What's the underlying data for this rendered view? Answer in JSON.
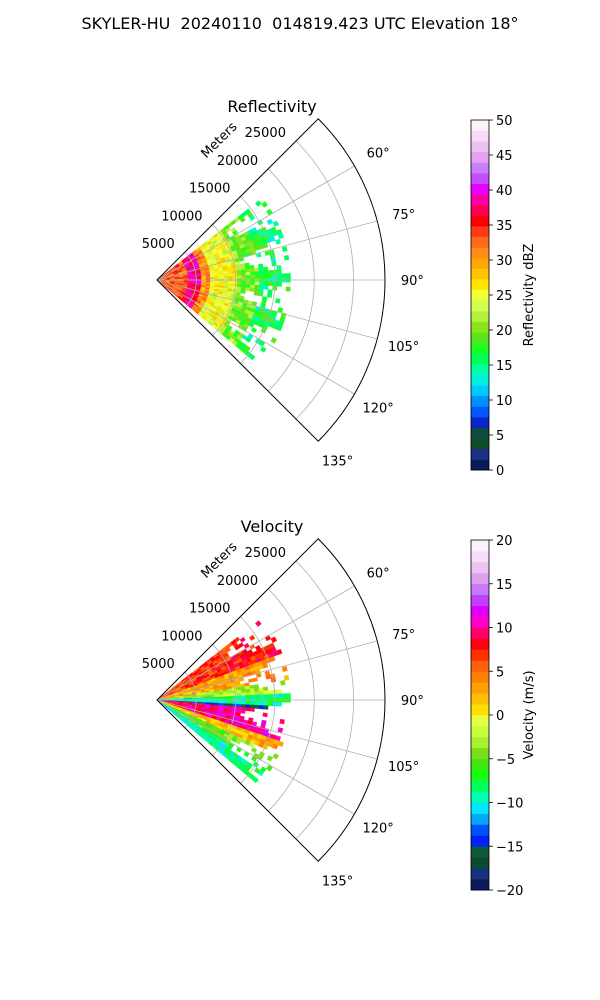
{
  "suptitle": "SKYLER-HU  20240110  014819.423 UTC Elevation 18°",
  "chart_data": [
    {
      "type": "heatmap",
      "title": "Reflectivity",
      "projection": "polar-sector",
      "theta_range_deg": [
        45,
        135
      ],
      "radial_label": "Meters",
      "radial_ticks": [
        5000,
        10000,
        15000,
        20000,
        25000
      ],
      "radial_tick_labels": [
        "5000",
        "10000",
        "15000",
        "20000",
        "25000"
      ],
      "radial_lim": [
        0,
        29000
      ],
      "angle_ticks_deg": [
        60,
        75,
        90,
        105,
        120,
        135
      ],
      "angle_tick_labels": [
        "60°",
        "75°",
        "90°",
        "105°",
        "120°",
        "135°"
      ],
      "grid": true,
      "colorbar": {
        "label": "Reflectivity dBZ",
        "range": [
          0,
          50
        ],
        "ticks": [
          0,
          5,
          10,
          15,
          20,
          25,
          30,
          35,
          40,
          45,
          50
        ],
        "tick_labels": [
          "0",
          "5",
          "10",
          "15",
          "20",
          "25",
          "30",
          "35",
          "40",
          "45",
          "50"
        ]
      },
      "field": {
        "echo_extent_m": 17000,
        "echo_theta_deg": [
          52,
          130
        ],
        "bands": [
          {
            "r_max_m": 4000,
            "dbz": 33
          },
          {
            "r_max_m": 5500,
            "dbz": 38
          },
          {
            "r_max_m": 7000,
            "dbz": 31
          },
          {
            "r_max_m": 10000,
            "dbz": 25
          },
          {
            "r_max_m": 13000,
            "dbz": 20
          },
          {
            "r_max_m": 17000,
            "dbz": 16
          }
        ]
      }
    },
    {
      "type": "heatmap",
      "title": "Velocity",
      "projection": "polar-sector",
      "theta_range_deg": [
        45,
        135
      ],
      "radial_label": "Meters",
      "radial_ticks": [
        5000,
        10000,
        15000,
        20000,
        25000
      ],
      "radial_tick_labels": [
        "5000",
        "10000",
        "15000",
        "20000",
        "25000"
      ],
      "radial_lim": [
        0,
        29000
      ],
      "angle_ticks_deg": [
        60,
        75,
        90,
        105,
        120,
        135
      ],
      "angle_tick_labels": [
        "60°",
        "75°",
        "90°",
        "105°",
        "120°",
        "135°"
      ],
      "grid": true,
      "colorbar": {
        "label": "Velocity (m/s)",
        "range": [
          -20,
          20
        ],
        "ticks": [
          -20,
          -15,
          -10,
          -5,
          0,
          5,
          10,
          15,
          20
        ],
        "tick_labels": [
          "−20",
          "−15",
          "−10",
          "−5",
          "0",
          "5",
          "10",
          "15",
          "20"
        ]
      },
      "field": {
        "echo_extent_m": 17000,
        "echo_theta_deg": [
          52,
          130
        ],
        "sectors": [
          {
            "theta_deg": [
              52,
              70
            ],
            "ms": 6
          },
          {
            "theta_deg": [
              70,
              82
            ],
            "ms": 2
          },
          {
            "theta_deg": [
              82,
              88
            ],
            "ms": -4
          },
          {
            "theta_deg": [
              88,
              92
            ],
            "ms": -10
          },
          {
            "theta_deg": [
              92,
              95
            ],
            "ms": -16
          },
          {
            "theta_deg": [
              95,
              108
            ],
            "ms": 9
          },
          {
            "theta_deg": [
              108,
              114
            ],
            "ms": 1
          },
          {
            "theta_deg": [
              114,
              122
            ],
            "ms": -6
          },
          {
            "theta_deg": [
              122,
              130
            ],
            "ms": -10
          }
        ]
      }
    }
  ]
}
